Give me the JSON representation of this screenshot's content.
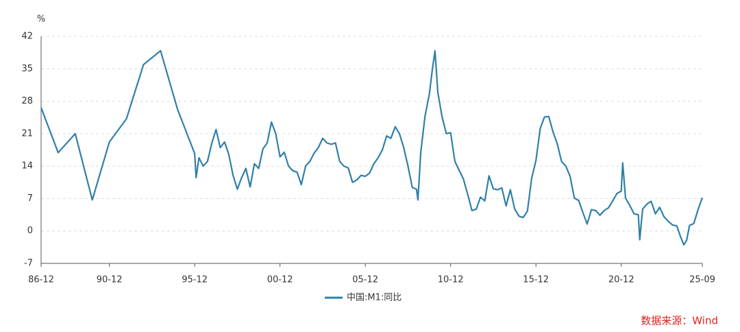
{
  "chart_data": {
    "type": "line",
    "y_unit": "%",
    "source": "数据来源：Wind",
    "ylim": [
      -7,
      42
    ],
    "yticks": [
      -7,
      0,
      7,
      14,
      21,
      28,
      35,
      42
    ],
    "grid": true,
    "legend": "bottom",
    "xlim": [
      "1986-12",
      "2025-09"
    ],
    "xticks": [
      {
        "value": "1986-12",
        "label": "86-12"
      },
      {
        "value": "1990-12",
        "label": "90-12"
      },
      {
        "value": "1995-12",
        "label": "95-12"
      },
      {
        "value": "2000-12",
        "label": "00-12"
      },
      {
        "value": "2005-12",
        "label": "05-12"
      },
      {
        "value": "2010-12",
        "label": "10-12"
      },
      {
        "value": "2015-12",
        "label": "15-12"
      },
      {
        "value": "2020-12",
        "label": "20-12"
      },
      {
        "value": "2025-09",
        "label": "25-09"
      }
    ],
    "x": [
      "1986-12",
      "1987-12",
      "1988-12",
      "1989-12",
      "1990-12",
      "1991-12",
      "1992-12",
      "1993-12",
      "1994-12",
      "1995-12",
      "1996-01",
      "1996-03",
      "1996-06",
      "1996-09",
      "1996-12",
      "1997-03",
      "1997-06",
      "1997-09",
      "1997-12",
      "1998-03",
      "1998-06",
      "1998-09",
      "1998-12",
      "1999-03",
      "1999-06",
      "1999-09",
      "1999-12",
      "2000-03",
      "2000-06",
      "2000-09",
      "2000-12",
      "2001-03",
      "2001-06",
      "2001-09",
      "2001-12",
      "2002-03",
      "2002-06",
      "2002-09",
      "2002-12",
      "2003-03",
      "2003-06",
      "2003-09",
      "2003-12",
      "2004-03",
      "2004-06",
      "2004-09",
      "2004-12",
      "2005-03",
      "2005-06",
      "2005-09",
      "2005-12",
      "2006-03",
      "2006-06",
      "2006-09",
      "2006-12",
      "2007-03",
      "2007-06",
      "2007-09",
      "2007-12",
      "2008-03",
      "2008-06",
      "2008-09",
      "2008-12",
      "2009-01",
      "2009-03",
      "2009-06",
      "2009-09",
      "2009-11",
      "2010-01",
      "2010-03",
      "2010-06",
      "2010-09",
      "2010-12",
      "2011-03",
      "2011-06",
      "2011-09",
      "2011-12",
      "2012-03",
      "2012-06",
      "2012-09",
      "2012-12",
      "2013-03",
      "2013-06",
      "2013-09",
      "2013-12",
      "2014-03",
      "2014-06",
      "2014-09",
      "2014-12",
      "2015-03",
      "2015-06",
      "2015-09",
      "2015-12",
      "2016-03",
      "2016-06",
      "2016-09",
      "2016-12",
      "2017-03",
      "2017-06",
      "2017-09",
      "2017-12",
      "2018-03",
      "2018-06",
      "2018-09",
      "2018-12",
      "2019-03",
      "2019-06",
      "2019-09",
      "2019-12",
      "2020-03",
      "2020-06",
      "2020-09",
      "2020-12",
      "2021-01",
      "2021-03",
      "2021-06",
      "2021-09",
      "2021-12",
      "2022-01",
      "2022-03",
      "2022-06",
      "2022-09",
      "2022-12",
      "2023-03",
      "2023-06",
      "2023-09",
      "2023-12",
      "2024-03",
      "2024-06",
      "2024-08",
      "2024-10",
      "2024-12",
      "2025-03",
      "2025-06",
      "2025-09"
    ],
    "series": [
      {
        "name": "中国:M1:同比",
        "color": "#2f7fa8",
        "values": [
          26.6,
          16.9,
          21.0,
          6.7,
          19.2,
          24.2,
          35.9,
          38.9,
          26.2,
          16.7,
          11.5,
          15.8,
          14.0,
          15.0,
          18.9,
          21.9,
          18.0,
          19.2,
          16.5,
          12.0,
          9.0,
          11.5,
          13.5,
          9.5,
          14.5,
          13.5,
          17.7,
          19.0,
          23.5,
          21.0,
          16.0,
          17.0,
          14.0,
          13.0,
          12.7,
          10.0,
          14.0,
          15.0,
          16.8,
          18.0,
          20.0,
          19.0,
          18.7,
          19.0,
          15.0,
          14.0,
          13.6,
          10.5,
          11.0,
          12.0,
          11.8,
          12.5,
          14.5,
          15.8,
          17.5,
          20.5,
          20.0,
          22.5,
          21.0,
          18.0,
          14.0,
          9.4,
          9.0,
          6.7,
          17.0,
          24.8,
          29.5,
          34.5,
          38.9,
          29.9,
          24.6,
          21.0,
          21.2,
          15.0,
          13.1,
          11.2,
          7.9,
          4.4,
          4.7,
          7.3,
          6.5,
          11.9,
          9.1,
          8.9,
          9.3,
          5.4,
          8.9,
          4.8,
          3.2,
          2.9,
          4.3,
          11.4,
          15.2,
          22.1,
          24.6,
          24.7,
          21.4,
          18.8,
          15.0,
          14.0,
          11.8,
          7.1,
          6.6,
          4.0,
          1.5,
          4.6,
          4.4,
          3.4,
          4.4,
          5.0,
          6.5,
          8.1,
          8.6,
          14.7,
          7.1,
          5.5,
          3.7,
          3.5,
          -1.9,
          4.7,
          5.8,
          6.4,
          3.7,
          5.1,
          3.1,
          2.1,
          1.3,
          1.1,
          -1.5,
          -3.0,
          -2.0,
          1.2,
          1.6,
          4.6,
          7.2
        ]
      }
    ]
  }
}
